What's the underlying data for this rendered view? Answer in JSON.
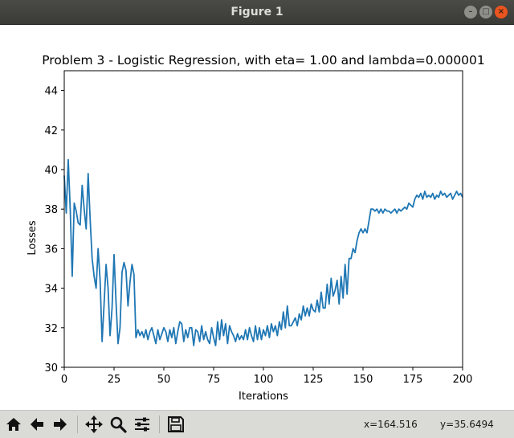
{
  "window": {
    "title": "Figure 1"
  },
  "toolbar": {
    "tools": [
      {
        "name": "home-icon"
      },
      {
        "name": "back-arrow-icon"
      },
      {
        "name": "forward-arrow-icon"
      },
      {
        "name": "pan-icon"
      },
      {
        "name": "zoom-icon"
      },
      {
        "name": "subplots-icon"
      },
      {
        "name": "save-icon"
      }
    ],
    "x_readout": "x=164.516",
    "y_readout": "y=35.6494"
  },
  "chart_data": {
    "type": "line",
    "title": "Problem 3 - Logistic Regression, with eta= 1.00 and lambda=0.000001",
    "xlabel": "Iterations",
    "ylabel": "Losses",
    "xlim": [
      0,
      200
    ],
    "ylim": [
      30,
      45
    ],
    "xticks": [
      "0",
      "25",
      "50",
      "75",
      "100",
      "125",
      "150",
      "175",
      "200"
    ],
    "yticks": [
      "30",
      "32",
      "34",
      "36",
      "38",
      "40",
      "42",
      "44"
    ],
    "grid": false,
    "line_color": "#1f77b4",
    "series": [
      {
        "x": [
          0,
          1,
          2,
          3,
          4,
          5,
          6,
          7,
          8,
          9,
          10,
          11,
          12,
          13,
          14,
          15,
          16,
          17,
          18,
          19,
          20,
          21,
          22,
          23,
          24,
          25,
          26,
          27,
          28,
          29,
          30,
          31,
          32,
          33,
          34,
          35,
          36,
          37,
          38,
          39,
          40,
          41,
          42,
          43,
          44,
          45,
          46,
          47,
          48,
          49,
          50,
          51,
          52,
          53,
          54,
          55,
          56,
          57,
          58,
          59,
          60,
          61,
          62,
          63,
          64,
          65,
          66,
          67,
          68,
          69,
          70,
          71,
          72,
          73,
          74,
          75,
          76,
          77,
          78,
          79,
          80,
          81,
          82,
          83,
          84,
          85,
          86,
          87,
          88,
          89,
          90,
          91,
          92,
          93,
          94,
          95,
          96,
          97,
          98,
          99,
          100,
          101,
          102,
          103,
          104,
          105,
          106,
          107,
          108,
          109,
          110,
          111,
          112,
          113,
          114,
          115,
          116,
          117,
          118,
          119,
          120,
          121,
          122,
          123,
          124,
          125,
          126,
          127,
          128,
          129,
          130,
          131,
          132,
          133,
          134,
          135,
          136,
          137,
          138,
          139,
          140,
          141,
          142,
          143,
          144,
          145,
          146,
          147,
          148,
          149,
          150,
          151,
          152,
          153,
          154,
          155,
          156,
          157,
          158,
          159,
          160,
          161,
          162,
          163,
          164,
          165,
          166,
          167,
          168,
          169,
          170,
          171,
          172,
          173,
          174,
          175,
          176,
          177,
          178,
          179,
          180,
          181,
          182,
          183,
          184,
          185,
          186,
          187,
          188,
          189,
          190,
          191,
          192,
          193,
          194,
          195,
          196,
          197,
          198,
          199,
          200
        ],
        "y": [
          39.7,
          37.8,
          40.5,
          38.0,
          34.6,
          38.3,
          37.9,
          37.3,
          37.2,
          39.2,
          38.0,
          37.0,
          39.8,
          37.5,
          35.5,
          34.6,
          34.0,
          36.0,
          34.4,
          31.3,
          33.2,
          35.2,
          34.0,
          31.6,
          33.0,
          35.7,
          33.3,
          31.2,
          32.0,
          34.8,
          35.3,
          34.9,
          33.1,
          34.3,
          35.2,
          34.7,
          31.5,
          31.9,
          31.6,
          31.8,
          31.5,
          31.9,
          31.4,
          31.8,
          32.0,
          31.6,
          31.2,
          31.9,
          31.4,
          31.7,
          32.0,
          31.8,
          31.3,
          31.9,
          31.5,
          32.0,
          31.2,
          31.8,
          32.3,
          32.2,
          31.3,
          31.9,
          31.5,
          32.0,
          32.0,
          31.1,
          31.9,
          31.8,
          31.3,
          32.1,
          31.4,
          31.8,
          31.4,
          31.2,
          32.0,
          31.5,
          31.1,
          32.3,
          31.4,
          32.4,
          31.6,
          32.2,
          31.2,
          32.1,
          31.8,
          31.6,
          31.3,
          31.7,
          31.4,
          31.6,
          31.4,
          31.9,
          31.4,
          32.0,
          31.6,
          31.3,
          32.1,
          31.4,
          32.0,
          31.4,
          31.9,
          31.6,
          32.1,
          31.5,
          32.2,
          31.8,
          32.1,
          31.6,
          32.3,
          31.9,
          32.8,
          32.0,
          33.1,
          32.1,
          32.1,
          32.3,
          32.5,
          32.1,
          32.7,
          32.4,
          33.1,
          32.6,
          33.0,
          32.6,
          33.2,
          32.9,
          32.8,
          33.4,
          32.8,
          33.8,
          33.0,
          33.0,
          34.2,
          33.2,
          34.5,
          33.6,
          33.9,
          34.4,
          33.2,
          34.6,
          33.5,
          35.2,
          33.7,
          35.5,
          35.5,
          36.0,
          35.8,
          36.4,
          36.8,
          37.0,
          36.8,
          37.0,
          36.8,
          37.4,
          38.0,
          38.0,
          37.9,
          38.0,
          37.8,
          38.0,
          37.8,
          38.0,
          37.9,
          37.9,
          37.8,
          37.9,
          38.0,
          37.8,
          38.0,
          37.9,
          38.0,
          38.1,
          38.0,
          38.3,
          38.2,
          38.1,
          38.5,
          38.7,
          38.6,
          38.8,
          38.5,
          38.9,
          38.6,
          38.7,
          38.6,
          38.8,
          38.5,
          38.7,
          38.6,
          38.9,
          38.7,
          38.8,
          38.6,
          38.7,
          38.8,
          38.5,
          38.7,
          38.9,
          38.7,
          38.8,
          38.6
        ]
      }
    ]
  }
}
